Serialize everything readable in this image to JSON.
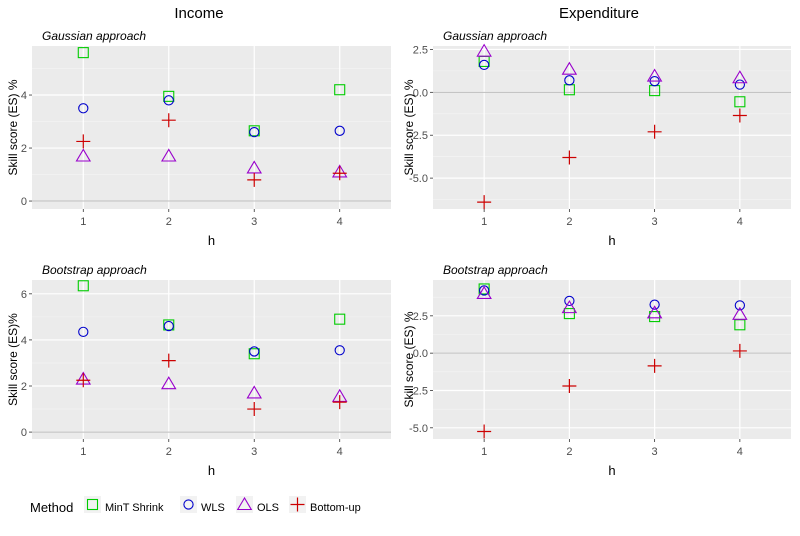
{
  "columns": [
    "Income",
    "Expenditure"
  ],
  "legend": {
    "title": "Method",
    "items": [
      {
        "name": "MinT Shrink",
        "color": "#00cc00",
        "shape": "square"
      },
      {
        "name": "WLS",
        "color": "#0000cc",
        "shape": "circle"
      },
      {
        "name": "OLS",
        "color": "#9900cc",
        "shape": "triangle"
      },
      {
        "name": "Bottom-up",
        "color": "#cc0000",
        "shape": "plus"
      }
    ]
  },
  "chart_data": [
    {
      "type": "scatter",
      "title": "Income",
      "subtitle": "Gaussian approach",
      "xlabel": "h",
      "ylabel": "Skill score (ES) %",
      "x": [
        1,
        2,
        3,
        4
      ],
      "xlim": [
        0.4,
        4.6
      ],
      "ylim": [
        -0.3,
        5.85
      ],
      "yticks": [
        0,
        2,
        4
      ],
      "grid": true,
      "hline": 0,
      "series": [
        {
          "name": "MinT Shrink",
          "values": [
            5.6,
            3.95,
            2.65,
            4.2
          ]
        },
        {
          "name": "WLS",
          "values": [
            3.5,
            3.8,
            2.6,
            2.65
          ]
        },
        {
          "name": "OLS",
          "values": [
            1.7,
            1.7,
            1.25,
            1.1
          ]
        },
        {
          "name": "Bottom-up",
          "values": [
            2.25,
            3.05,
            0.8,
            1.05
          ]
        }
      ]
    },
    {
      "type": "scatter",
      "title": "Expenditure",
      "subtitle": "Gaussian approach",
      "xlabel": "h",
      "ylabel": "Skill score (ES) %",
      "x": [
        1,
        2,
        3,
        4
      ],
      "xlim": [
        0.4,
        4.6
      ],
      "ylim": [
        -6.8,
        2.7
      ],
      "yticks": [
        2.5,
        0.0,
        -2.5,
        -5.0
      ],
      "ytick_labels": [
        "2.5",
        "0.0",
        "-2.5",
        "-5.0"
      ],
      "grid": true,
      "hline": 0,
      "series": [
        {
          "name": "MinT Shrink",
          "values": [
            1.8,
            0.15,
            0.1,
            -0.55
          ]
        },
        {
          "name": "WLS",
          "values": [
            1.6,
            0.7,
            0.65,
            0.45
          ]
        },
        {
          "name": "OLS",
          "values": [
            2.4,
            1.35,
            0.95,
            0.85
          ]
        },
        {
          "name": "Bottom-up",
          "values": [
            -6.4,
            -3.8,
            -2.3,
            -1.35
          ]
        }
      ]
    },
    {
      "type": "scatter",
      "title": "Income",
      "subtitle": "Bootstrap approach",
      "xlabel": "h",
      "ylabel": "Skill score (ES)%",
      "x": [
        1,
        2,
        3,
        4
      ],
      "xlim": [
        0.4,
        4.6
      ],
      "ylim": [
        -0.3,
        6.6
      ],
      "yticks": [
        0,
        2,
        4,
        6
      ],
      "grid": true,
      "hline": 0,
      "series": [
        {
          "name": "MinT Shrink",
          "values": [
            6.35,
            4.65,
            3.4,
            4.9
          ]
        },
        {
          "name": "WLS",
          "values": [
            4.35,
            4.6,
            3.5,
            3.55
          ]
        },
        {
          "name": "OLS",
          "values": [
            2.3,
            2.1,
            1.7,
            1.55
          ]
        },
        {
          "name": "Bottom-up",
          "values": [
            2.25,
            3.1,
            1.0,
            1.3
          ]
        }
      ]
    },
    {
      "type": "scatter",
      "title": "Expenditure",
      "subtitle": "Bootstrap approach",
      "xlabel": "h",
      "ylabel": "Skill score (ES) %",
      "x": [
        1,
        2,
        3,
        4
      ],
      "xlim": [
        0.4,
        4.6
      ],
      "ylim": [
        -5.75,
        4.9
      ],
      "yticks": [
        2.5,
        0.0,
        -2.5,
        -5.0
      ],
      "ytick_labels": [
        "2.5",
        "0.0",
        "-2.5",
        "-5.0"
      ],
      "grid": true,
      "hline": 0,
      "series": [
        {
          "name": "MinT Shrink",
          "values": [
            4.3,
            2.65,
            2.45,
            1.9
          ]
        },
        {
          "name": "WLS",
          "values": [
            4.2,
            3.5,
            3.25,
            3.2
          ]
        },
        {
          "name": "OLS",
          "values": [
            4.0,
            3.05,
            2.7,
            2.6
          ]
        },
        {
          "name": "Bottom-up",
          "values": [
            -5.25,
            -2.2,
            -0.85,
            0.15
          ]
        }
      ]
    }
  ]
}
